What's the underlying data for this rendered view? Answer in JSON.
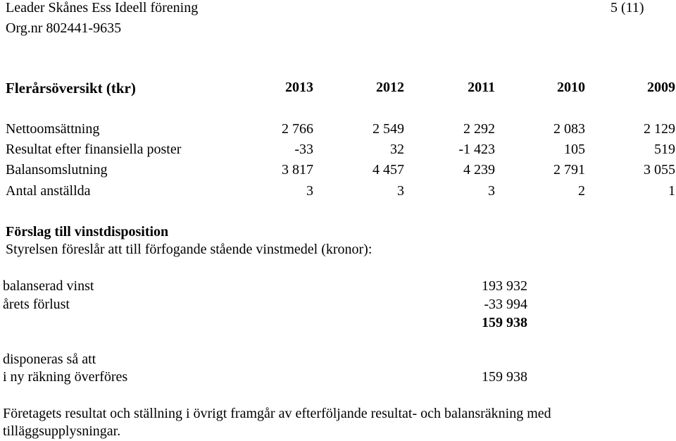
{
  "header": {
    "org_name": "Leader Skånes Ess Ideell förening",
    "page_label": "5 (11)",
    "org_nr": "Org.nr 802441-9635"
  },
  "overview": {
    "title": "Flerårsöversikt (tkr)",
    "years": [
      "2013",
      "2012",
      "2011",
      "2010",
      "2009"
    ],
    "rows": [
      {
        "label": "Nettoomsättning",
        "values": [
          "2 766",
          "2 549",
          "2 292",
          "2 083",
          "2 129"
        ]
      },
      {
        "label": "Resultat efter finansiella poster",
        "values": [
          "-33",
          "32",
          "-1 423",
          "105",
          "519"
        ]
      },
      {
        "label": "Balansomslutning",
        "values": [
          "3 817",
          "4 457",
          "4 239",
          "2 791",
          "3 055"
        ]
      },
      {
        "label": "Antal anställda",
        "values": [
          "3",
          "3",
          "3",
          "2",
          "1"
        ]
      }
    ]
  },
  "disposition": {
    "title": "Förslag till vinstdisposition",
    "intro": "Styrelsen föreslår att till förfogande stående vinstmedel (kronor):",
    "lines": [
      {
        "label": "balanserad vinst",
        "value": "193 932"
      },
      {
        "label": "årets förlust",
        "value": "-33 994"
      }
    ],
    "total": "159 938",
    "disposed_heading": "disponeras så att",
    "disposed_line": {
      "label": "i ny räkning överföres",
      "value": "159 938"
    }
  },
  "footer": {
    "line1": "Företagets resultat och ställning i övrigt framgår av efterföljande resultat- och balansräkning med",
    "line2": "tilläggsupplysningar."
  }
}
